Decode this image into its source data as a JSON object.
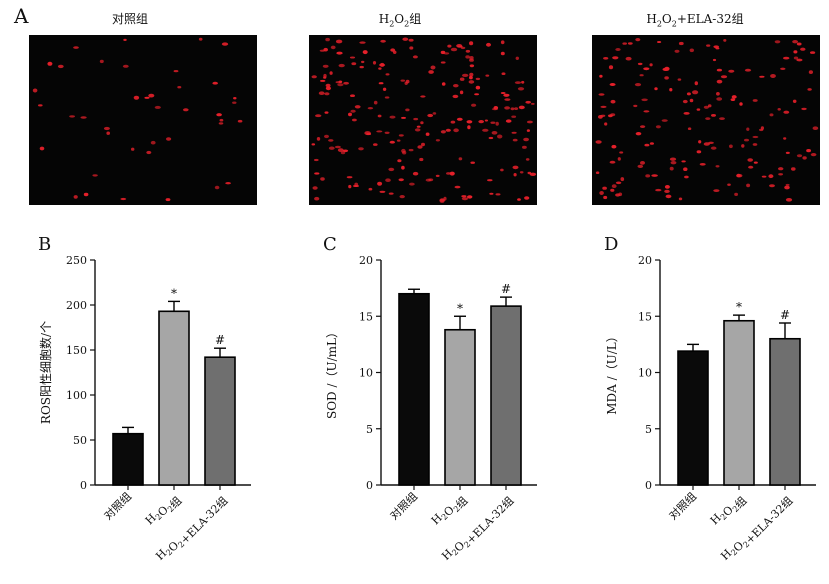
{
  "panel_a": {
    "label": "A",
    "images": [
      {
        "title": "对照组",
        "cell_color": "#e8202a",
        "density": "low"
      },
      {
        "title": "H2O2组",
        "cell_color": "#e8202a",
        "density": "high"
      },
      {
        "title": "H2O2+ELA-32组",
        "cell_color": "#e8202a",
        "density": "medium-high"
      }
    ]
  },
  "colors": {
    "control": "#0a0a0a",
    "h2o2": "#a6a6a6",
    "ela": "#6f6f6f",
    "axis": "#111111",
    "image_bg": "#050505"
  },
  "chart_data": [
    {
      "panel": "B",
      "type": "bar",
      "categories": [
        "对照组",
        "H2O2组",
        "H2O2+ELA-32组"
      ],
      "values": [
        57,
        193,
        142
      ],
      "errors": [
        7,
        11,
        10
      ],
      "significance": [
        "",
        "*",
        "#"
      ],
      "ylabel": "ROS阳性细胞数/个",
      "ylim": [
        0,
        250
      ],
      "yticks": [
        0,
        50,
        100,
        150,
        200,
        250
      ]
    },
    {
      "panel": "C",
      "type": "bar",
      "categories": [
        "对照组",
        "H2O2组",
        "H2O2+ELA-32组"
      ],
      "values": [
        17.0,
        13.8,
        15.9
      ],
      "errors": [
        0.4,
        1.2,
        0.8
      ],
      "significance": [
        "",
        "*",
        "#"
      ],
      "ylabel": "SOD /（U/mL）",
      "ylim": [
        0,
        20
      ],
      "yticks": [
        0,
        5,
        10,
        15,
        20
      ]
    },
    {
      "panel": "D",
      "type": "bar",
      "categories": [
        "对照组",
        "H2O2组",
        "H2O2+ELA-32组"
      ],
      "values": [
        11.9,
        14.6,
        13.0
      ],
      "errors": [
        0.6,
        0.5,
        1.4
      ],
      "significance": [
        "",
        "*",
        "#"
      ],
      "ylabel": "MDA /（U/L）",
      "ylim": [
        0,
        20
      ],
      "yticks": [
        0,
        5,
        10,
        15,
        20
      ]
    }
  ]
}
